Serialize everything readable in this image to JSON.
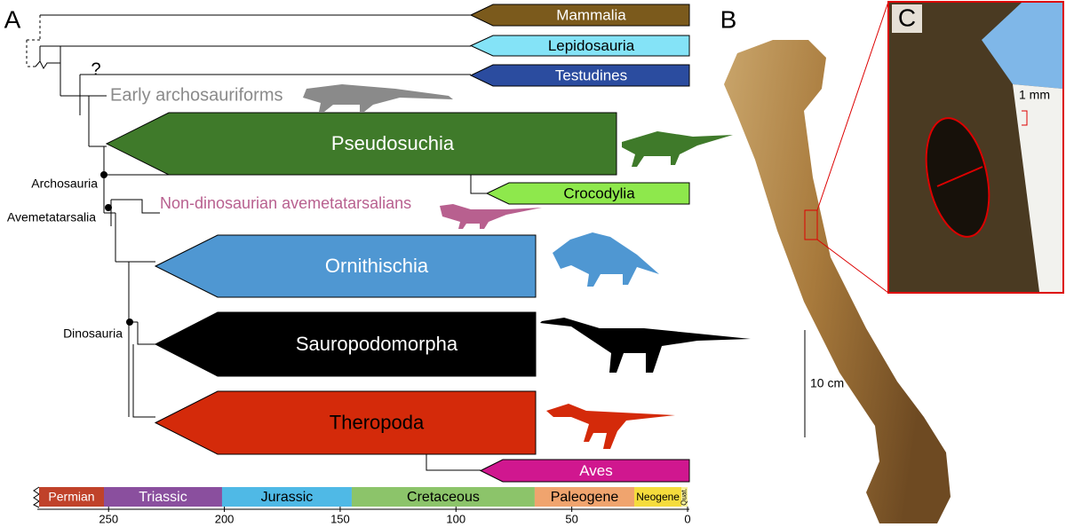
{
  "panels": {
    "a": "A",
    "b": "B",
    "c": "C"
  },
  "clades": [
    {
      "name": "Mammalia",
      "color": "#7b5a1c",
      "text_color": "#ffffff"
    },
    {
      "name": "Lepidosauria",
      "color": "#84e3f7",
      "text_color": "#000000"
    },
    {
      "name": "Testudines",
      "color": "#2b4c9f",
      "text_color": "#ffffff"
    },
    {
      "name": "Pseudosuchia",
      "color": "#3f7a2a",
      "text_color": "#ffffff"
    },
    {
      "name": "Crocodylia",
      "color": "#8ee84c",
      "text_color": "#000000"
    },
    {
      "name": "Ornithischia",
      "color": "#4f97d2",
      "text_color": "#ffffff"
    },
    {
      "name": "Sauropodomorpha",
      "color": "#000000",
      "text_color": "#ffffff"
    },
    {
      "name": "Theropoda",
      "color": "#d42a0a",
      "text_color": "#000000"
    },
    {
      "name": "Aves",
      "color": "#d0178f",
      "text_color": "#ffffff"
    }
  ],
  "labels": {
    "early": "Early archosauriforms",
    "nondino": "Non-dinosaurian avemetatarsalians",
    "question": "?"
  },
  "nodes": [
    "Archosauria",
    "Avemetatarsalia",
    "Dinosauria"
  ],
  "time_axis": {
    "xlim": [
      280,
      0
    ],
    "ticks": [
      250,
      200,
      150,
      100,
      50,
      0
    ],
    "periods": [
      {
        "name": "Permian",
        "end": 252,
        "color": "#c0422a"
      },
      {
        "name": "Triassic",
        "end": 201,
        "color": "#8a4f9e"
      },
      {
        "name": "Jurassic",
        "end": 145,
        "color": "#4fb9e6"
      },
      {
        "name": "Cretaceous",
        "end": 66,
        "color": "#8cc46a"
      },
      {
        "name": "Paleogene",
        "end": 23,
        "color": "#f0a46e"
      },
      {
        "name": "Neogene",
        "end": 2.6,
        "color": "#f5dc3c"
      },
      {
        "name": "Quat.",
        "end": 0,
        "color": "#f7f19a"
      }
    ]
  },
  "scale_bars": {
    "bone": "10 cm",
    "inset": "1 mm"
  }
}
